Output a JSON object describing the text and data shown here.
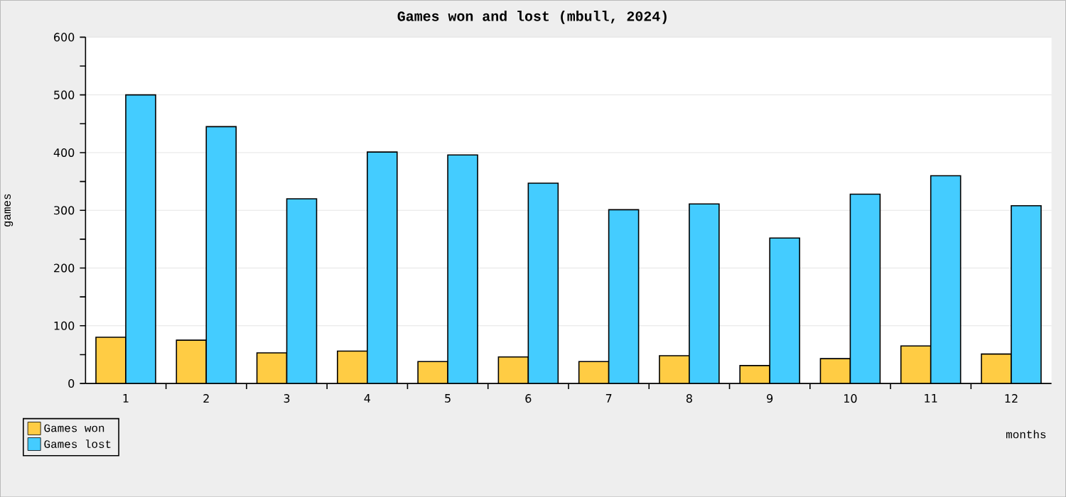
{
  "chart_data": {
    "type": "bar",
    "title": "Games won and lost (mbull, 2024)",
    "xlabel": "months",
    "ylabel": "games",
    "categories": [
      "1",
      "2",
      "3",
      "4",
      "5",
      "6",
      "7",
      "8",
      "9",
      "10",
      "11",
      "12"
    ],
    "series": [
      {
        "name": "Games won",
        "color": "#ffcc44",
        "values": [
          80,
          75,
          53,
          56,
          38,
          46,
          38,
          48,
          31,
          43,
          65,
          51
        ]
      },
      {
        "name": "Games lost",
        "color": "#44ccff",
        "values": [
          500,
          445,
          320,
          401,
          396,
          347,
          301,
          311,
          252,
          328,
          360,
          308
        ]
      }
    ],
    "ylim": [
      0,
      600
    ],
    "yticks": [
      0,
      100,
      200,
      300,
      400,
      500,
      600
    ],
    "grid": "y",
    "legend": "bottom left"
  }
}
